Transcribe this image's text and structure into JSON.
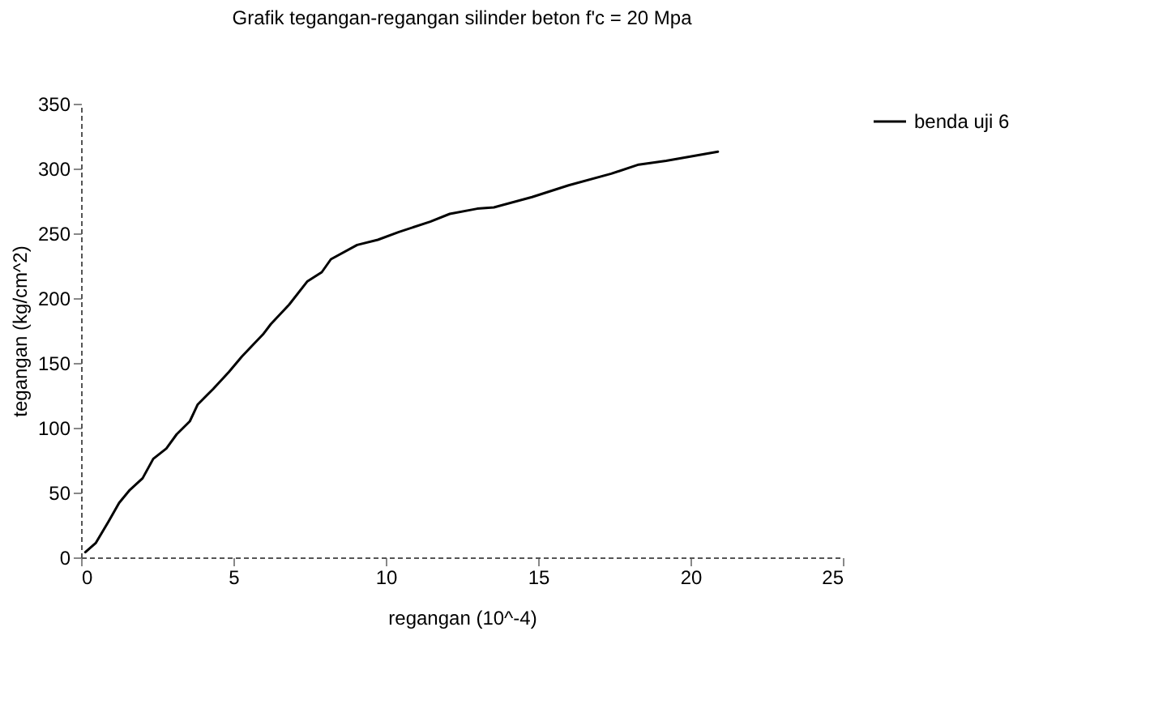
{
  "chart_data": {
    "type": "line",
    "title": "Grafik tegangan-regangan silinder beton f'c = 20 Mpa",
    "xlabel": "regangan (10^-4)",
    "ylabel": "tegangan (kg/cm^2)",
    "x": [
      0.14,
      0.48,
      0.91,
      1.25,
      1.6,
      2.02,
      2.37,
      2.8,
      3.14,
      3.57,
      3.83,
      4.34,
      4.85,
      5.28,
      5.97,
      6.23,
      6.83,
      7.43,
      7.9,
      8.2,
      9.06,
      9.74,
      10.43,
      11.46,
      12.1,
      13.0,
      13.55,
      14.8,
      16.0,
      17.4,
      18.3,
      19.2,
      20.9
    ],
    "series": [
      {
        "name": "benda uji 6",
        "color": "#000000",
        "values": [
          4,
          11,
          28,
          42,
          52,
          61,
          76,
          84,
          95,
          105,
          118,
          130,
          143,
          155,
          172,
          180,
          195,
          213,
          220,
          230,
          241,
          245,
          251,
          259,
          265,
          269,
          270,
          278,
          287,
          296,
          303,
          306,
          313
        ]
      }
    ],
    "xlim": [
      0,
      25
    ],
    "xticks": [
      0,
      5,
      10,
      15,
      20,
      25
    ],
    "ylim": [
      0,
      350
    ],
    "yticks": [
      0,
      50,
      100,
      150,
      200,
      250,
      300,
      350
    ],
    "grid": false,
    "legend": "right",
    "marker": "none",
    "line_style": "solid"
  }
}
